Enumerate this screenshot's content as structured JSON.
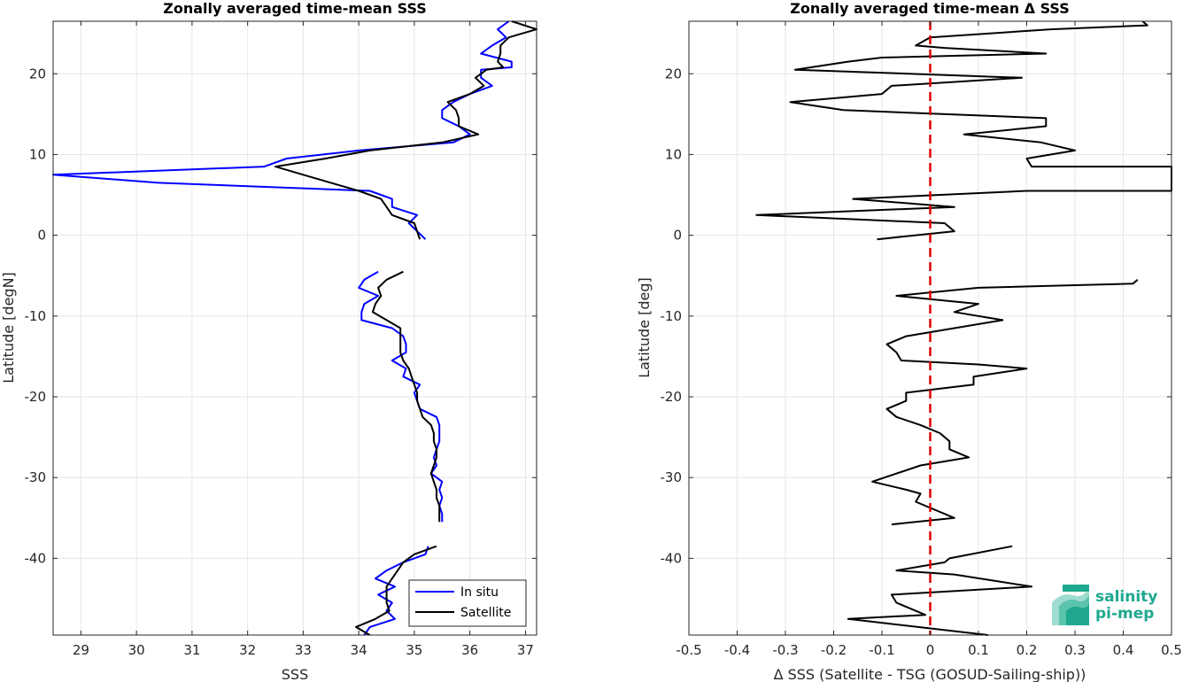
{
  "chart_data": [
    {
      "type": "line",
      "title": "Zonally averaged time-mean SSS",
      "xlabel": "SSS",
      "ylabel": "Latitude [degN]",
      "xlim": [
        28.5,
        37.2
      ],
      "ylim": [
        -49.5,
        26.5
      ],
      "xticks": [
        29,
        30,
        31,
        32,
        33,
        34,
        35,
        36,
        37
      ],
      "yticks": [
        -40,
        -30,
        -20,
        -10,
        0,
        10,
        20
      ],
      "grid": true,
      "legend": {
        "placement": "bottom-right",
        "entries": [
          "In situ",
          "Satellite"
        ]
      },
      "series": [
        {
          "name": "In situ",
          "color": "#0000ff",
          "segments": [
            [
              [
                36.7,
                26.5
              ],
              [
                36.5,
                25.5
              ],
              [
                36.65,
                24.5
              ],
              [
                36.4,
                23.5
              ],
              [
                36.2,
                22.5
              ],
              [
                36.75,
                21.5
              ],
              [
                36.75,
                20.8
              ],
              [
                36.2,
                20.5
              ],
              [
                36.2,
                19.5
              ],
              [
                36.4,
                18.5
              ],
              [
                36.0,
                17.5
              ],
              [
                35.7,
                16.5
              ],
              [
                35.5,
                15.5
              ],
              [
                35.5,
                14.5
              ],
              [
                35.8,
                13.5
              ],
              [
                36.0,
                12.5
              ],
              [
                35.7,
                11.5
              ],
              [
                34.0,
                10.5
              ],
              [
                32.7,
                9.5
              ],
              [
                32.3,
                8.5
              ],
              [
                28.5,
                7.5
              ],
              [
                30.4,
                6.5
              ],
              [
                34.2,
                5.5
              ],
              [
                34.6,
                4.5
              ],
              [
                34.6,
                3.5
              ],
              [
                35.05,
                2.5
              ],
              [
                34.9,
                1.5
              ],
              [
                35.2,
                -0.5
              ]
            ],
            [
              [
                34.35,
                -4.5
              ],
              [
                34.1,
                -5.5
              ],
              [
                34.0,
                -6.5
              ],
              [
                34.35,
                -7.5
              ],
              [
                34.1,
                -8.5
              ],
              [
                34.05,
                -9.5
              ],
              [
                34.05,
                -10.5
              ],
              [
                34.6,
                -11.5
              ],
              [
                34.8,
                -12.5
              ],
              [
                34.85,
                -13.5
              ],
              [
                34.85,
                -14.5
              ],
              [
                34.6,
                -15.5
              ],
              [
                34.85,
                -16.5
              ],
              [
                34.8,
                -17.5
              ],
              [
                35.1,
                -18.5
              ],
              [
                35.0,
                -19.5
              ],
              [
                35.05,
                -20.5
              ],
              [
                35.1,
                -21.5
              ],
              [
                35.4,
                -22.5
              ],
              [
                35.45,
                -23.5
              ],
              [
                35.45,
                -24.5
              ],
              [
                35.45,
                -25.5
              ],
              [
                35.4,
                -26.5
              ],
              [
                35.35,
                -27.5
              ],
              [
                35.4,
                -28.5
              ],
              [
                35.3,
                -29.5
              ],
              [
                35.5,
                -30.5
              ],
              [
                35.45,
                -31.5
              ],
              [
                35.5,
                -32.5
              ],
              [
                35.45,
                -33.5
              ],
              [
                35.5,
                -34.5
              ],
              [
                35.5,
                -35.5
              ]
            ],
            [
              [
                35.25,
                -38.5
              ],
              [
                35.2,
                -39.5
              ],
              [
                34.8,
                -40.5
              ],
              [
                34.5,
                -41.5
              ],
              [
                34.3,
                -42.5
              ],
              [
                34.65,
                -43.5
              ],
              [
                34.35,
                -44.5
              ],
              [
                34.6,
                -45.5
              ],
              [
                34.5,
                -46.5
              ],
              [
                34.65,
                -47.5
              ],
              [
                34.2,
                -48.5
              ],
              [
                34.1,
                -49.5
              ]
            ]
          ]
        },
        {
          "name": "Satellite",
          "color": "#000000",
          "segments": [
            [
              [
                36.75,
                26.5
              ],
              [
                37.2,
                25.5
              ],
              [
                36.7,
                24.5
              ],
              [
                36.55,
                23.5
              ],
              [
                36.55,
                22.5
              ],
              [
                36.5,
                21.5
              ],
              [
                36.6,
                20.8
              ],
              [
                36.3,
                20.5
              ],
              [
                36.1,
                19.5
              ],
              [
                36.25,
                18.5
              ],
              [
                36.0,
                17.5
              ],
              [
                35.6,
                16.5
              ],
              [
                35.75,
                15.5
              ],
              [
                35.8,
                14.5
              ],
              [
                35.8,
                13.5
              ],
              [
                36.15,
                12.5
              ],
              [
                35.5,
                11.5
              ],
              [
                34.2,
                10.5
              ],
              [
                33.4,
                9.5
              ],
              [
                32.5,
                8.5
              ],
              [
                33.0,
                7.5
              ],
              [
                33.5,
                6.5
              ],
              [
                34.0,
                5.5
              ],
              [
                34.4,
                4.5
              ],
              [
                34.5,
                3.5
              ],
              [
                34.6,
                2.5
              ],
              [
                35.0,
                1.5
              ],
              [
                35.1,
                -0.5
              ]
            ],
            [
              [
                34.8,
                -4.5
              ],
              [
                34.5,
                -5.5
              ],
              [
                34.35,
                -6.5
              ],
              [
                34.4,
                -7.5
              ],
              [
                34.3,
                -8.5
              ],
              [
                34.25,
                -9.5
              ],
              [
                34.5,
                -10.5
              ],
              [
                34.75,
                -11.5
              ],
              [
                34.75,
                -12.5
              ],
              [
                34.75,
                -13.5
              ],
              [
                34.75,
                -14.5
              ],
              [
                34.8,
                -15.5
              ],
              [
                34.9,
                -16.5
              ],
              [
                34.95,
                -17.5
              ],
              [
                35.0,
                -18.5
              ],
              [
                35.05,
                -19.5
              ],
              [
                35.05,
                -20.5
              ],
              [
                35.1,
                -21.5
              ],
              [
                35.15,
                -22.5
              ],
              [
                35.3,
                -23.5
              ],
              [
                35.35,
                -24.5
              ],
              [
                35.35,
                -25.5
              ],
              [
                35.4,
                -26.5
              ],
              [
                35.4,
                -27.5
              ],
              [
                35.35,
                -28.5
              ],
              [
                35.3,
                -29.5
              ],
              [
                35.35,
                -30.5
              ],
              [
                35.4,
                -31.5
              ],
              [
                35.4,
                -32.5
              ],
              [
                35.45,
                -33.5
              ],
              [
                35.45,
                -34.5
              ],
              [
                35.45,
                -35.5
              ]
            ],
            [
              [
                35.4,
                -38.5
              ],
              [
                35.0,
                -39.5
              ],
              [
                34.8,
                -40.5
              ],
              [
                34.7,
                -41.5
              ],
              [
                34.6,
                -42.5
              ],
              [
                34.5,
                -43.5
              ],
              [
                34.5,
                -44.5
              ],
              [
                34.5,
                -45.5
              ],
              [
                34.55,
                -46.5
              ],
              [
                34.3,
                -47.5
              ],
              [
                33.95,
                -48.5
              ],
              [
                34.2,
                -49.5
              ]
            ]
          ]
        }
      ]
    },
    {
      "type": "line",
      "title": "Zonally averaged time-mean Δ SSS",
      "xlabel": "Δ SSS (Satellite - TSG (GOSUD-Sailing-ship))",
      "ylabel": "Latitude [deg]",
      "xlim": [
        -0.5,
        0.5
      ],
      "ylim": [
        -49.5,
        26.5
      ],
      "xticks": [
        -0.5,
        -0.4,
        -0.3,
        -0.2,
        -0.1,
        0,
        0.1,
        0.2,
        0.3,
        0.4,
        0.5
      ],
      "xticklabels": [
        "-0.5",
        "-0.4",
        "-0.3",
        "-0.2",
        "-0.1",
        "0",
        "0.1",
        "0.2",
        "0.3",
        "0.4",
        "0.5"
      ],
      "yticks": [
        -40,
        -30,
        -20,
        -10,
        0,
        10,
        20
      ],
      "grid": true,
      "reference_line": {
        "x": 0,
        "color": "#e00000",
        "style": "dashed"
      },
      "series": [
        {
          "color": "#000000",
          "segments": [
            [
              [
                0.44,
                26.5
              ],
              [
                0.45,
                26.0
              ],
              [
                0.25,
                25.5
              ],
              [
                0.0,
                24.5
              ],
              [
                -0.03,
                23.5
              ],
              [
                0.03,
                23.2
              ],
              [
                0.24,
                22.5
              ],
              [
                -0.1,
                22.0
              ],
              [
                -0.17,
                21.5
              ],
              [
                -0.28,
                20.5
              ],
              [
                0.19,
                19.5
              ],
              [
                -0.08,
                18.5
              ],
              [
                -0.1,
                17.5
              ],
              [
                -0.29,
                16.5
              ],
              [
                -0.18,
                15.5
              ],
              [
                0.24,
                14.5
              ],
              [
                0.24,
                13.5
              ],
              [
                0.07,
                12.5
              ],
              [
                0.23,
                11.5
              ],
              [
                0.3,
                10.5
              ],
              [
                0.2,
                9.5
              ],
              [
                0.21,
                8.5
              ],
              [
                0.5,
                8.5
              ],
              [
                0.5,
                5.5
              ],
              [
                0.2,
                5.5
              ],
              [
                -0.16,
                4.5
              ],
              [
                0.05,
                3.5
              ],
              [
                -0.36,
                2.5
              ],
              [
                0.03,
                1.5
              ],
              [
                0.05,
                0.5
              ],
              [
                -0.11,
                -0.5
              ]
            ],
            [
              [
                0.43,
                -5.5
              ],
              [
                0.42,
                -6.0
              ],
              [
                0.1,
                -6.5
              ],
              [
                -0.07,
                -7.5
              ],
              [
                0.1,
                -8.5
              ],
              [
                0.05,
                -9.5
              ],
              [
                0.15,
                -10.5
              ],
              [
                -0.05,
                -12.5
              ],
              [
                -0.09,
                -13.5
              ],
              [
                -0.07,
                -14.5
              ],
              [
                -0.06,
                -15.5
              ],
              [
                0.1,
                -16.0
              ],
              [
                0.2,
                -16.5
              ],
              [
                0.09,
                -17.5
              ],
              [
                0.09,
                -18.5
              ],
              [
                -0.05,
                -19.5
              ],
              [
                -0.05,
                -20.5
              ],
              [
                -0.09,
                -21.5
              ],
              [
                -0.07,
                -22.5
              ],
              [
                -0.02,
                -23.5
              ],
              [
                0.02,
                -24.5
              ],
              [
                0.04,
                -25.5
              ],
              [
                0.04,
                -26.5
              ],
              [
                0.08,
                -27.5
              ],
              [
                -0.02,
                -28.5
              ],
              [
                -0.12,
                -30.5
              ],
              [
                -0.05,
                -31.5
              ],
              [
                -0.02,
                -32.0
              ],
              [
                -0.03,
                -33.0
              ],
              [
                0.05,
                -35.0
              ],
              [
                -0.08,
                -35.8
              ]
            ],
            [
              [
                0.17,
                -38.5
              ],
              [
                0.04,
                -40.0
              ],
              [
                0.03,
                -40.5
              ],
              [
                -0.07,
                -41.5
              ],
              [
                0.05,
                -42.0
              ],
              [
                0.21,
                -43.5
              ],
              [
                -0.08,
                -44.5
              ],
              [
                -0.07,
                -45.5
              ],
              [
                -0.05,
                -46.0
              ],
              [
                -0.01,
                -47.0
              ],
              [
                -0.17,
                -47.5
              ],
              [
                0.12,
                -49.5
              ]
            ]
          ]
        }
      ]
    }
  ],
  "logo": {
    "line1": "salinity",
    "line2": "pi-mep"
  }
}
